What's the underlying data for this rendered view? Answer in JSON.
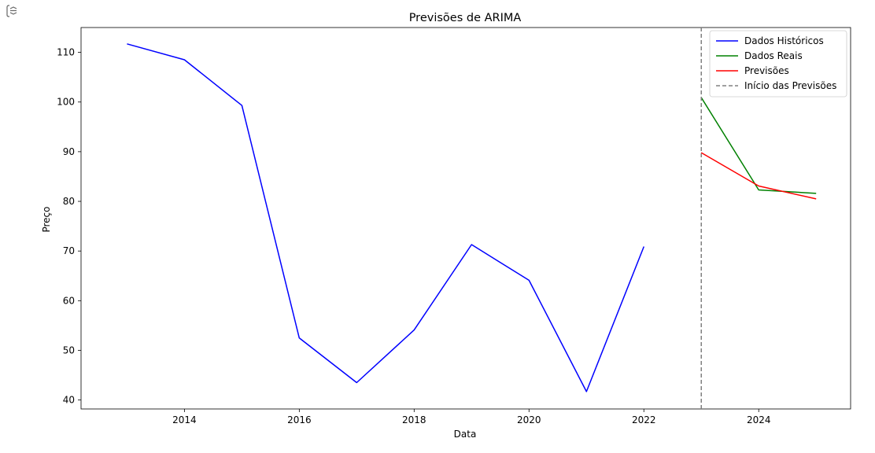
{
  "cell": {
    "output_icon": "output-toggle-icon"
  },
  "chart_data": {
    "type": "line",
    "title": "Previsões de ARIMA",
    "xlabel": "Data",
    "ylabel": "Preço",
    "xlim": [
      2012.2,
      2025.6
    ],
    "ylim": [
      38.2,
      115
    ],
    "xticks": [
      2014,
      2016,
      2018,
      2020,
      2022,
      2024
    ],
    "yticks": [
      40,
      50,
      60,
      70,
      80,
      90,
      100,
      110
    ],
    "grid": false,
    "legend_position": "upper right",
    "series": [
      {
        "name": "Dados Históricos",
        "color": "#0000ff",
        "style": "solid",
        "x": [
          2013,
          2014,
          2015,
          2016,
          2017,
          2018,
          2019,
          2020,
          2021,
          2022
        ],
        "y": [
          111.7,
          108.5,
          99.3,
          52.5,
          43.5,
          54.1,
          71.3,
          64.1,
          41.7,
          70.9
        ]
      },
      {
        "name": "Dados Reais",
        "color": "#008000",
        "style": "solid",
        "x": [
          2023,
          2024,
          2025
        ],
        "y": [
          100.9,
          82.3,
          81.6
        ]
      },
      {
        "name": "Previsões",
        "color": "#ff0000",
        "style": "solid",
        "x": [
          2023,
          2024,
          2025
        ],
        "y": [
          89.8,
          83.1,
          80.5
        ]
      }
    ],
    "vlines": [
      {
        "name": "Início das Previsões",
        "color": "#808080",
        "style": "dashed",
        "x": 2023
      }
    ]
  }
}
